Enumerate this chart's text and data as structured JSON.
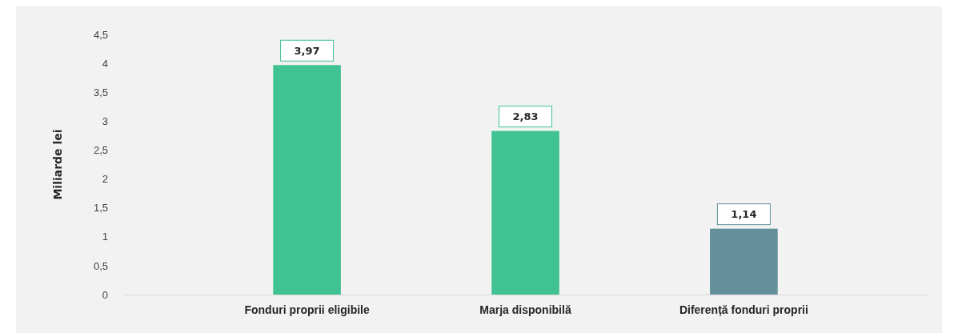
{
  "chart_data": {
    "type": "bar",
    "ylabel": "Miliarde lei",
    "categories": [
      "Fonduri proprii eligibile",
      "Marja disponibilă",
      "Diferență fonduri proprii"
    ],
    "values": [
      3.97,
      2.83,
      1.14
    ],
    "colors": [
      "#40c293",
      "#40c293",
      "#628f9a"
    ],
    "value_labels": [
      "3,97",
      "2,83",
      "1,14"
    ],
    "ylim": [
      0,
      4.5
    ],
    "yticks": [
      0,
      {
        "value": 0.5,
        "label": "0,5"
      },
      1,
      {
        "value": 1.5,
        "label": "1,5"
      },
      2,
      {
        "value": 2.5,
        "label": "2,5"
      },
      3,
      {
        "value": 3.5,
        "label": "3,5"
      },
      4,
      {
        "value": 4.5,
        "label": "4,5"
      }
    ],
    "grid": false
  }
}
